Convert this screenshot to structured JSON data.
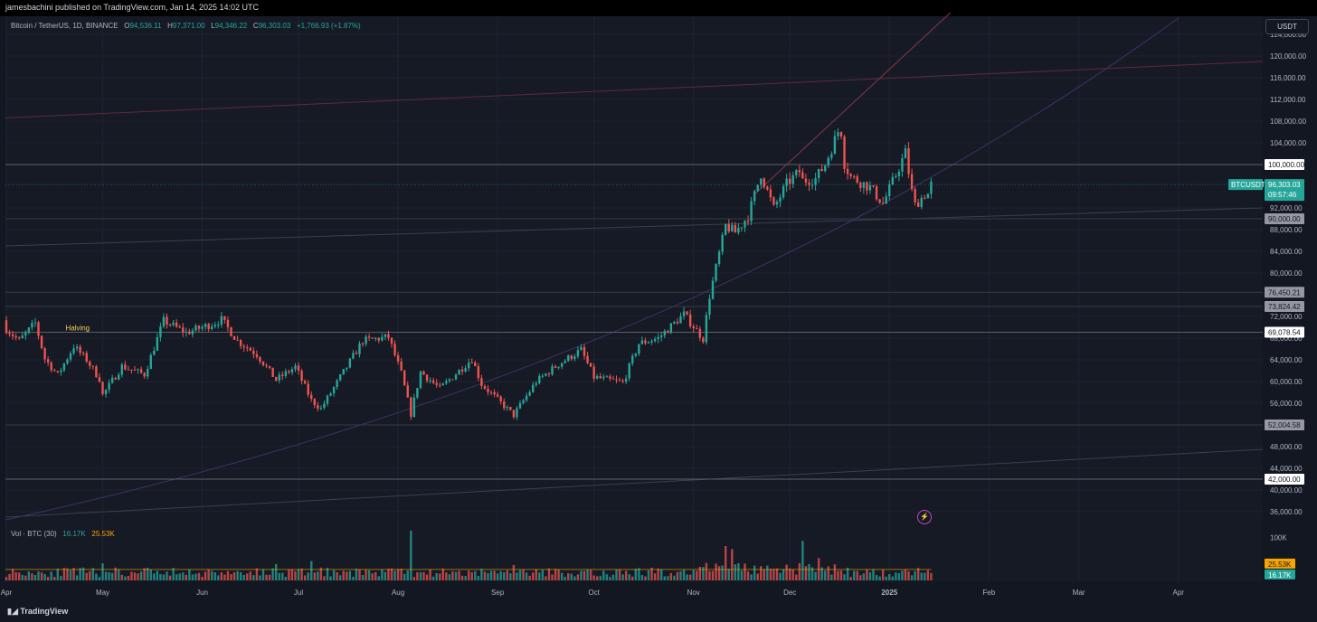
{
  "header": {
    "publisher": "jamesbachini published on TradingView.com, Jan 14, 2025 14:02 UTC"
  },
  "legend": {
    "symbol": "Bitcoin / TetherUS, 1D, BINANCE",
    "o_label": "O",
    "o": "94,536.11",
    "h_label": "H",
    "h": "97,371.00",
    "l_label": "L",
    "l": "94,346.22",
    "c_label": "C",
    "c": "96,303.03",
    "change": "+1,766.93 (+1.87%)"
  },
  "volume_legend": {
    "label": "Vol · BTC (30)",
    "v1": "16.17K",
    "v2": "25.53K"
  },
  "axis_currency": "USDT",
  "footer": {
    "brand": "TradingView"
  },
  "colors": {
    "up": "#26a69a",
    "down": "#ef5350",
    "bg": "#161a25"
  },
  "chart_data": {
    "type": "candlestick",
    "symbol": "BTCUSDT",
    "interval": "1D",
    "y_axis": {
      "range": [
        34000,
        127000
      ],
      "ticks": [
        {
          "v": 124000,
          "label": "124,000.00"
        },
        {
          "v": 120000,
          "label": "120,000.00"
        },
        {
          "v": 116000,
          "label": "116,000.00"
        },
        {
          "v": 112000,
          "label": "112,000.00"
        },
        {
          "v": 108000,
          "label": "108,000.00"
        },
        {
          "v": 104000,
          "label": "104,000.00"
        },
        {
          "v": 92000,
          "label": "92,000.00"
        },
        {
          "v": 88000,
          "label": "88,000.00"
        },
        {
          "v": 84000,
          "label": "84,000.00"
        },
        {
          "v": 80000,
          "label": "80,000.00"
        },
        {
          "v": 72000,
          "label": "72,000.00"
        },
        {
          "v": 68000,
          "label": "68,000.00"
        },
        {
          "v": 64000,
          "label": "64,000.00"
        },
        {
          "v": 60000,
          "label": "60,000.00"
        },
        {
          "v": 56000,
          "label": "56,000.00"
        },
        {
          "v": 48000,
          "label": "48,000.00"
        },
        {
          "v": 44000,
          "label": "44,000.00"
        },
        {
          "v": 40000,
          "label": "40,000.00"
        },
        {
          "v": 36000,
          "label": "36,000.00"
        }
      ]
    },
    "price_lines": [
      {
        "v": 100000,
        "label": "100,000.00",
        "style": "white"
      },
      {
        "v": 90000,
        "label": "90,000.00",
        "style": "grey"
      },
      {
        "v": 76450.21,
        "label": "76,450.21",
        "style": "grey"
      },
      {
        "v": 73824.42,
        "label": "73,824.42",
        "style": "grey"
      },
      {
        "v": 69078.54,
        "label": "69,078.54",
        "style": "white"
      },
      {
        "v": 52004.58,
        "label": "52,004.58",
        "style": "grey"
      },
      {
        "v": 42000,
        "label": "42,000.00",
        "style": "white"
      }
    ],
    "last_price": {
      "v": 96303.03,
      "label": "96,303.03",
      "countdown": "09:57:46",
      "tag": "BTCUSDT"
    },
    "annotations": [
      {
        "text": "Halving",
        "date": "2024-04-20",
        "price": 69078.54
      }
    ],
    "x_axis": {
      "start": "2024-04-01",
      "end": "2025-04-30",
      "labels": [
        {
          "text": "Apr",
          "date": "2024-04-01"
        },
        {
          "text": "May",
          "date": "2024-05-01"
        },
        {
          "text": "Jun",
          "date": "2024-06-01"
        },
        {
          "text": "Jul",
          "date": "2024-07-01"
        },
        {
          "text": "Aug",
          "date": "2024-08-01"
        },
        {
          "text": "Sep",
          "date": "2024-09-01"
        },
        {
          "text": "Oct",
          "date": "2024-10-01"
        },
        {
          "text": "Nov",
          "date": "2024-11-01"
        },
        {
          "text": "Dec",
          "date": "2024-12-01"
        },
        {
          "text": "2025",
          "date": "2025-01-01"
        },
        {
          "text": "Feb",
          "date": "2025-02-01"
        },
        {
          "text": "Mar",
          "date": "2025-03-01"
        },
        {
          "text": "Apr",
          "date": "2025-04-01"
        }
      ]
    },
    "candles_start": "2024-04-01",
    "close_anchors": [
      [
        "2024-04-01",
        69700
      ],
      [
        "2024-04-05",
        67500
      ],
      [
        "2024-04-10",
        70800
      ],
      [
        "2024-04-13",
        64200
      ],
      [
        "2024-04-17",
        61200
      ],
      [
        "2024-04-22",
        66500
      ],
      [
        "2024-04-26",
        64000
      ],
      [
        "2024-04-30",
        60500
      ],
      [
        "2024-05-01",
        57500
      ],
      [
        "2024-05-07",
        62800
      ],
      [
        "2024-05-14",
        61300
      ],
      [
        "2024-05-20",
        71200
      ],
      [
        "2024-05-27",
        69000
      ],
      [
        "2024-06-04",
        70600
      ],
      [
        "2024-06-07",
        71400
      ],
      [
        "2024-06-12",
        67500
      ],
      [
        "2024-06-18",
        65000
      ],
      [
        "2024-06-24",
        60300
      ],
      [
        "2024-06-30",
        62700
      ],
      [
        "2024-07-05",
        56500
      ],
      [
        "2024-07-08",
        55000
      ],
      [
        "2024-07-14",
        60800
      ],
      [
        "2024-07-21",
        67500
      ],
      [
        "2024-07-29",
        68200
      ],
      [
        "2024-08-02",
        61500
      ],
      [
        "2024-08-05",
        54000
      ],
      [
        "2024-08-08",
        61800
      ],
      [
        "2024-08-14",
        58700
      ],
      [
        "2024-08-24",
        64200
      ],
      [
        "2024-08-27",
        59500
      ],
      [
        "2024-09-06",
        53800
      ],
      [
        "2024-09-13",
        60000
      ],
      [
        "2024-09-20",
        63200
      ],
      [
        "2024-09-27",
        65800
      ],
      [
        "2024-10-01",
        60800
      ],
      [
        "2024-10-10",
        59800
      ],
      [
        "2024-10-15",
        67000
      ],
      [
        "2024-10-21",
        68000
      ],
      [
        "2024-10-29",
        72400
      ],
      [
        "2024-11-04",
        67900
      ],
      [
        "2024-11-06",
        75800
      ],
      [
        "2024-11-11",
        88700
      ],
      [
        "2024-11-14",
        87500
      ],
      [
        "2024-11-18",
        90500
      ],
      [
        "2024-11-22",
        98300
      ],
      [
        "2024-11-26",
        91900
      ],
      [
        "2024-11-30",
        96400
      ],
      [
        "2024-12-04",
        98700
      ],
      [
        "2024-12-05",
        97000
      ],
      [
        "2024-12-09",
        97400
      ],
      [
        "2024-12-12",
        100000
      ],
      [
        "2024-12-16",
        106100
      ],
      [
        "2024-12-17",
        106000
      ],
      [
        "2024-12-18",
        100200
      ],
      [
        "2024-12-20",
        97700
      ],
      [
        "2024-12-26",
        95800
      ],
      [
        "2024-12-30",
        92800
      ],
      [
        "2025-01-03",
        98100
      ],
      [
        "2025-01-06",
        102200
      ],
      [
        "2025-01-08",
        95000
      ],
      [
        "2025-01-09",
        92500
      ],
      [
        "2025-01-12",
        94500
      ],
      [
        "2025-01-13",
        94536.11
      ],
      [
        "2025-01-14",
        96303.03
      ]
    ],
    "volume": {
      "name": "Vol · BTC (30)",
      "values_k": [
        16.17,
        25.53
      ],
      "axis_label": "100K",
      "avg_k": 25.53,
      "peaks": [
        {
          "date": "2024-08-05",
          "k": 116
        },
        {
          "date": "2024-11-11",
          "k": 80
        },
        {
          "date": "2024-11-13",
          "k": 73
        },
        {
          "date": "2024-12-05",
          "k": 92
        },
        {
          "date": "2024-07-05",
          "k": 45
        },
        {
          "date": "2024-05-01",
          "k": 40
        },
        {
          "date": "2024-06-24",
          "k": 38
        },
        {
          "date": "2024-09-06",
          "k": 36
        },
        {
          "date": "2024-12-10",
          "k": 52
        }
      ]
    }
  }
}
